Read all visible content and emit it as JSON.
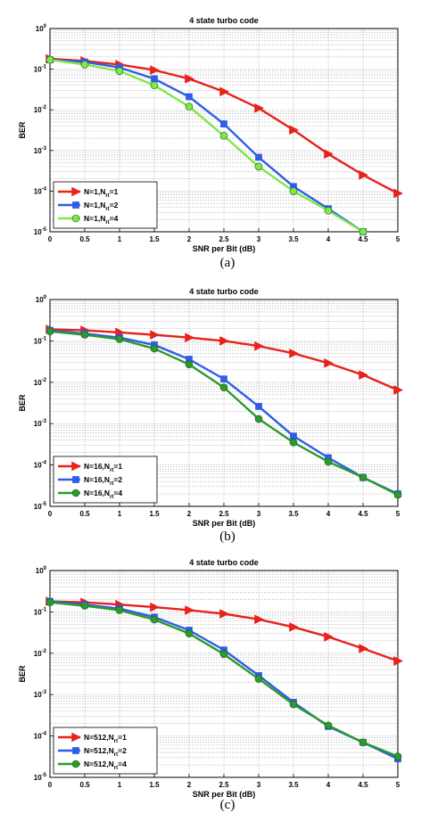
{
  "chart_data": [
    {
      "type": "line",
      "title": "4 state turbo code",
      "xlabel": "SNR per Bit (dB)",
      "ylabel": "BER",
      "caption": "(a)",
      "x": [
        0,
        0.5,
        1,
        1.5,
        2,
        2.5,
        3,
        3.5,
        4,
        4.5,
        5
      ],
      "xlim": [
        0,
        5
      ],
      "ylim": [
        1e-05,
        1
      ],
      "yscale": "log",
      "grid": true,
      "legend_position": "bottom-left",
      "x_ticks": [
        "0",
        "0.5",
        "1",
        "1.5",
        "2",
        "2.5",
        "3",
        "3.5",
        "4",
        "4.5",
        "5"
      ],
      "y_ticks": [
        "10^-5",
        "10^-4",
        "10^-3",
        "10^-2",
        "10^-1",
        "10^0"
      ],
      "series": [
        {
          "legend_main": "N=1,N",
          "legend_sub": "rt",
          "legend_tail": "=1",
          "color": "#e8211b",
          "marker": "triangle-right",
          "values": [
            0.18,
            0.16,
            0.13,
            0.095,
            0.058,
            0.028,
            0.011,
            0.0032,
            0.00082,
            0.00025,
            8.8e-05
          ]
        },
        {
          "legend_main": "N=1,N",
          "legend_sub": "rt",
          "legend_tail": "=2",
          "color": "#2f5de8",
          "marker": "square",
          "values": [
            0.17,
            0.15,
            0.11,
            0.058,
            0.021,
            0.0045,
            0.00068,
            0.00013,
            3.7e-05,
            1e-05,
            null
          ]
        },
        {
          "legend_main": "N=1,N",
          "legend_sub": "rt",
          "legend_tail": "=4",
          "color": "#7ee84a",
          "marker": "circle",
          "values": [
            0.17,
            0.13,
            0.09,
            0.04,
            0.012,
            0.0023,
            0.0004,
            0.0001,
            3.3e-05,
            1e-05,
            null
          ]
        }
      ]
    },
    {
      "type": "line",
      "title": "4 state turbo code",
      "xlabel": "SNR per Bit (dB)",
      "ylabel": "BER",
      "caption": "(b)",
      "x": [
        0,
        0.5,
        1,
        1.5,
        2,
        2.5,
        3,
        3.5,
        4,
        4.5,
        5
      ],
      "xlim": [
        0,
        5
      ],
      "ylim": [
        1e-05,
        1
      ],
      "yscale": "log",
      "grid": true,
      "legend_position": "bottom-left",
      "x_ticks": [
        "0",
        "0.5",
        "1",
        "1.5",
        "2",
        "2.5",
        "3",
        "3.5",
        "4",
        "4.5",
        "5"
      ],
      "y_ticks": [
        "10^-5",
        "10^-4",
        "10^-3",
        "10^-2",
        "10^-1",
        "10^0"
      ],
      "series": [
        {
          "legend_main": "N=16,N",
          "legend_sub": "rt",
          "legend_tail": "=1",
          "color": "#e8211b",
          "marker": "triangle-right",
          "values": [
            0.19,
            0.18,
            0.16,
            0.14,
            0.12,
            0.1,
            0.075,
            0.05,
            0.029,
            0.015,
            0.0065
          ]
        },
        {
          "legend_main": "N=16,N",
          "legend_sub": "rt",
          "legend_tail": "=2",
          "color": "#2f5de8",
          "marker": "square",
          "values": [
            0.18,
            0.15,
            0.12,
            0.08,
            0.036,
            0.012,
            0.0026,
            0.0005,
            0.00015,
            5e-05,
            2e-05
          ]
        },
        {
          "legend_main": "N=16,N",
          "legend_sub": "rt",
          "legend_tail": "=4",
          "color": "#2c9a2c",
          "marker": "circle",
          "values": [
            0.17,
            0.14,
            0.11,
            0.065,
            0.027,
            0.0075,
            0.0013,
            0.00035,
            0.00012,
            5e-05,
            1.9e-05
          ]
        }
      ]
    },
    {
      "type": "line",
      "title": "4 state turbo code",
      "xlabel": "SNR per Bit (dB)",
      "ylabel": "BER",
      "caption": "(c)",
      "x": [
        0,
        0.5,
        1,
        1.5,
        2,
        2.5,
        3,
        3.5,
        4,
        4.5,
        5
      ],
      "xlim": [
        0,
        5
      ],
      "ylim": [
        1e-05,
        1
      ],
      "yscale": "log",
      "grid": true,
      "legend_position": "bottom-left",
      "x_ticks": [
        "0",
        "0.5",
        "1",
        "1.5",
        "2",
        "2.5",
        "3",
        "3.5",
        "4",
        "4.5",
        "5"
      ],
      "y_ticks": [
        "10^-5",
        "10^-4",
        "10^-3",
        "10^-2",
        "10^-1",
        "10^0"
      ],
      "series": [
        {
          "legend_main": "N=512,N",
          "legend_sub": "rt",
          "legend_tail": "=1",
          "color": "#e8211b",
          "marker": "triangle-right",
          "values": [
            0.18,
            0.17,
            0.15,
            0.13,
            0.11,
            0.09,
            0.066,
            0.043,
            0.025,
            0.013,
            0.0065
          ]
        },
        {
          "legend_main": "N=512,N",
          "legend_sub": "rt",
          "legend_tail": "=2",
          "color": "#2f5de8",
          "marker": "square",
          "values": [
            0.18,
            0.15,
            0.12,
            0.075,
            0.036,
            0.012,
            0.0029,
            0.00065,
            0.00017,
            7e-05,
            2.8e-05
          ]
        },
        {
          "legend_main": "N=512,N",
          "legend_sub": "rt",
          "legend_tail": "=4",
          "color": "#2c9a2c",
          "marker": "circle",
          "values": [
            0.17,
            0.14,
            0.11,
            0.065,
            0.03,
            0.0095,
            0.0024,
            0.00058,
            0.00018,
            7e-05,
            3.2e-05
          ]
        }
      ]
    }
  ]
}
